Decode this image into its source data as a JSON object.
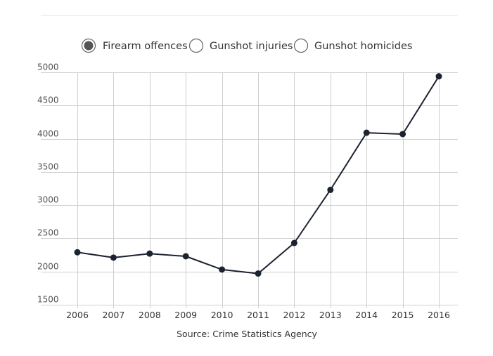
{
  "legend": {
    "items": [
      {
        "label": "Firearm offences",
        "selected": true
      },
      {
        "label": "Gunshot injuries",
        "selected": false
      },
      {
        "label": "Gunshot homicides",
        "selected": false
      }
    ]
  },
  "source": "Source: Crime Statistics Agency",
  "colors": {
    "line": "#1c2230",
    "marker": "#1c2230",
    "grid": "#cfcfcf",
    "radio_selected_fill": "#555555",
    "radio_border": "#666666"
  },
  "chart_data": {
    "type": "line",
    "title": "",
    "xlabel": "",
    "ylabel": "",
    "x": [
      "2006",
      "2007",
      "2008",
      "2009",
      "2010",
      "2011",
      "2012",
      "2013",
      "2014",
      "2015",
      "2016"
    ],
    "series": [
      {
        "name": "Firearm offences",
        "values": [
          2290,
          2210,
          2270,
          2230,
          2030,
          1970,
          2430,
          3230,
          4090,
          4070,
          4940
        ]
      }
    ],
    "ylim": [
      1500,
      5000
    ],
    "yticks": [
      "1500",
      "2000",
      "2500",
      "3000",
      "3500",
      "4000",
      "4500",
      "5000"
    ],
    "grid": true,
    "legend_position": "top-center"
  }
}
